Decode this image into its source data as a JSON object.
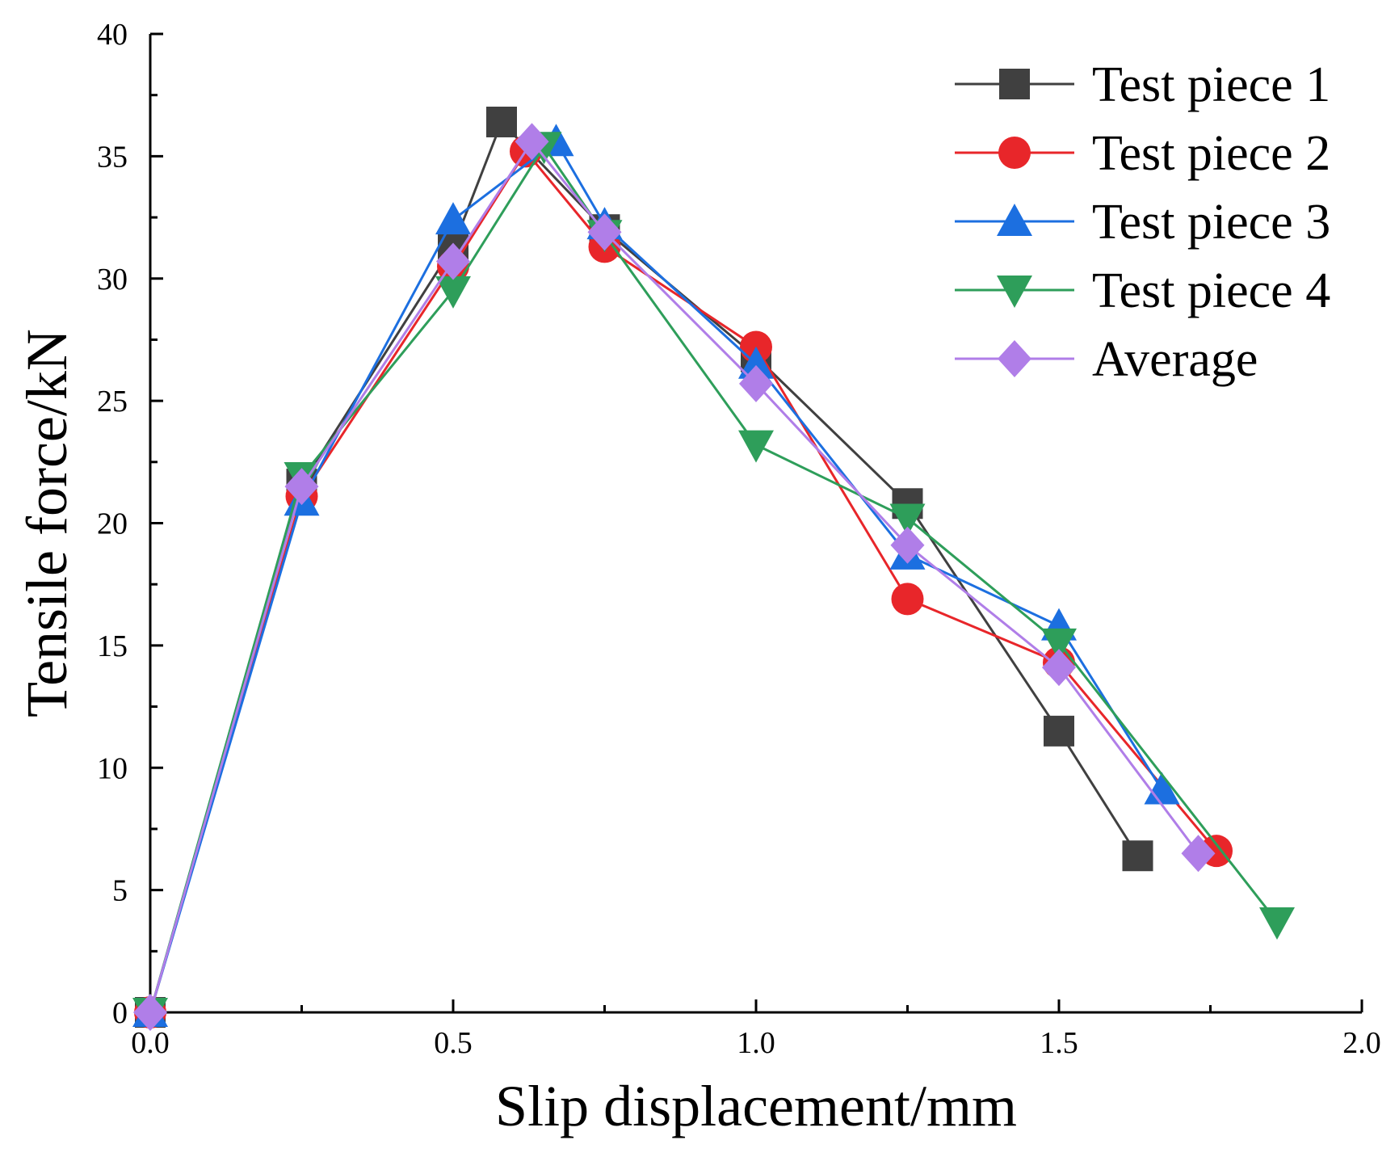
{
  "chart_data": {
    "type": "line",
    "title": "",
    "xlabel": "Slip displacement/mm",
    "ylabel": "Tensile force/kN",
    "xlim": [
      0,
      2.0
    ],
    "ylim": [
      0,
      40
    ],
    "xticks": [
      "0.0",
      "0.5",
      "1.0",
      "1.5",
      "2.0"
    ],
    "yticks": [
      "0",
      "5",
      "10",
      "15",
      "20",
      "25",
      "30",
      "35",
      "40"
    ],
    "legend_position": "top-right",
    "series": [
      {
        "name": "Test piece 1",
        "marker": "square",
        "color": "#404040",
        "x": [
          0,
          0.25,
          0.5,
          0.58,
          0.75,
          1.0,
          1.25,
          1.5,
          1.63
        ],
        "y": [
          0,
          21.6,
          31.3,
          36.4,
          32.0,
          26.8,
          20.8,
          11.5,
          6.4
        ]
      },
      {
        "name": "Test piece 2",
        "marker": "circle",
        "color": "#e8262a",
        "x": [
          0,
          0.25,
          0.5,
          0.62,
          0.75,
          1.0,
          1.25,
          1.5,
          1.76
        ],
        "y": [
          0,
          21.1,
          30.5,
          35.2,
          31.3,
          27.2,
          16.9,
          14.3,
          6.6
        ]
      },
      {
        "name": "Test piece 3",
        "marker": "triangle-up",
        "color": "#1c6fe0",
        "x": [
          0,
          0.25,
          0.5,
          0.67,
          0.75,
          1.0,
          1.25,
          1.5,
          1.67
        ],
        "y": [
          0,
          20.9,
          32.4,
          35.6,
          32.2,
          26.5,
          18.7,
          15.8,
          9.1
        ]
      },
      {
        "name": "Test piece 4",
        "marker": "triangle-down",
        "color": "#2e9e5a",
        "x": [
          0,
          0.25,
          0.5,
          0.65,
          0.75,
          1.0,
          1.25,
          1.5,
          1.86
        ],
        "y": [
          0,
          21.9,
          29.5,
          35.4,
          31.8,
          23.2,
          20.2,
          15.1,
          3.7
        ]
      },
      {
        "name": "Average",
        "marker": "diamond",
        "color": "#b07ee8",
        "x": [
          0,
          0.25,
          0.5,
          0.63,
          0.75,
          1.0,
          1.25,
          1.5,
          1.73
        ],
        "y": [
          0,
          21.5,
          30.7,
          35.6,
          31.9,
          25.7,
          19.1,
          14.1,
          6.5
        ]
      }
    ]
  }
}
